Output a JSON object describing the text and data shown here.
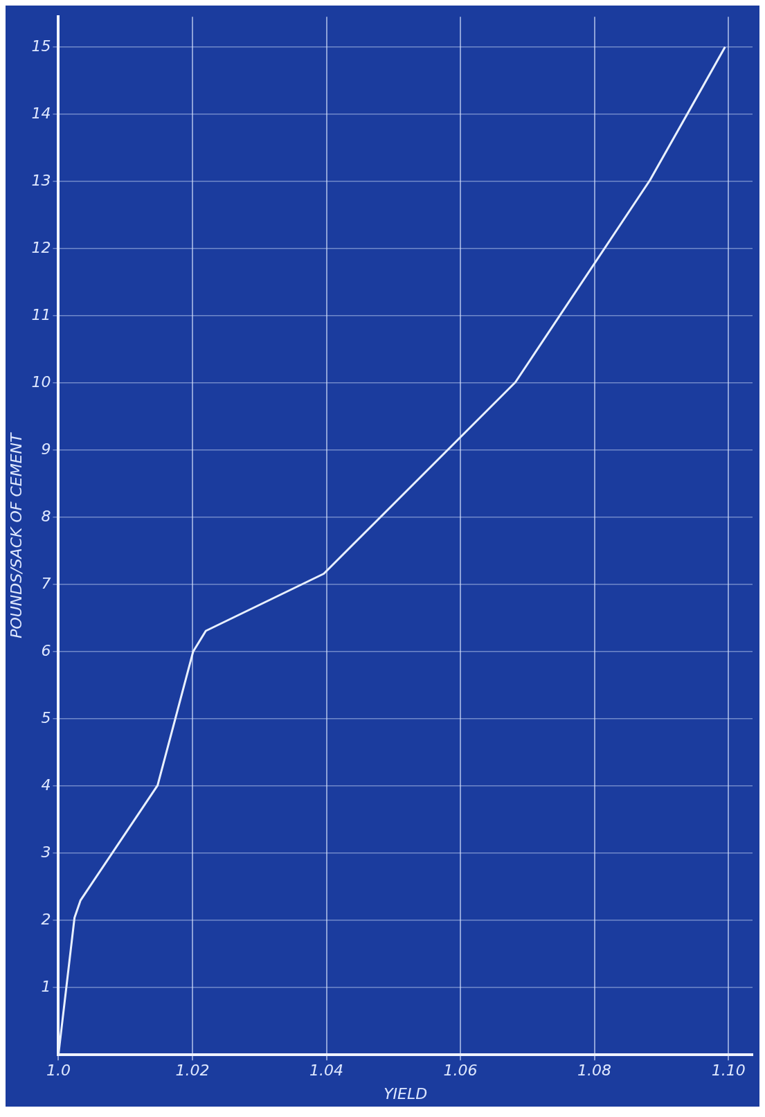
{
  "chart_data": {
    "type": "line",
    "xlabel": "YIELD",
    "ylabel": "POUNDS/SACK OF CEMENT",
    "x": [
      1.0,
      1.0024,
      1.0033,
      1.0148,
      1.0201,
      1.022,
      1.0396,
      1.0682,
      1.0883,
      1.0995
    ],
    "series": [
      {
        "color": "#e8f0ff",
        "values": [
          0,
          2.04,
          2.3,
          4.01,
          6.0,
          6.31,
          7.16,
          10.01,
          13.02,
          15.0
        ]
      }
    ],
    "xlim": [
      1.0,
      1.1036
    ],
    "ylim": [
      0,
      15.45
    ],
    "xticks": [
      {
        "value": 1.0,
        "label": "1.0"
      },
      1.02,
      1.04,
      1.06,
      1.08,
      {
        "value": 1.1,
        "label": "1.10"
      }
    ],
    "yticks": [
      1,
      2,
      3,
      4,
      5,
      6,
      7,
      8,
      9,
      10,
      11,
      12,
      13,
      14,
      15
    ],
    "grid": true,
    "marker": "none",
    "line_style": "solid"
  }
}
